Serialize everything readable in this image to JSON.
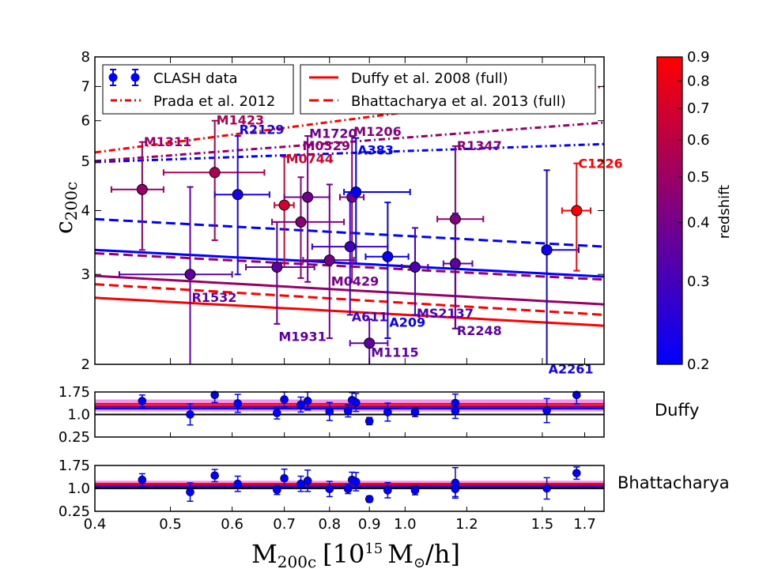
{
  "chart_data": [
    {
      "panel": "main",
      "type": "scatter",
      "x_scale": "log",
      "y_scale": "log",
      "xlim": [
        0.4,
        1.8
      ],
      "ylim": [
        2,
        8
      ],
      "ylabel": "c",
      "ylabel_sub": "200c",
      "xlabel_main": "M",
      "xlabel_sub": "200c",
      "xlabel_unit": "[10",
      "xlabel_exp": "15",
      "xlabel_unit_tail": "M",
      "xlabel_sun": "⊙",
      "xlabel_per": "/h]",
      "y_ticks": [
        2,
        3,
        4,
        5,
        6,
        7,
        8
      ],
      "x_ticks": [
        0.4,
        0.5,
        0.6,
        0.7,
        0.8,
        0.9,
        1.0,
        1.2,
        1.5,
        1.7
      ],
      "x_tick_labels": [
        "0.4",
        "0.5",
        "0.6",
        "0.7",
        "0.8",
        "0.9",
        "1.0",
        "1.2",
        "1.5",
        "1.7"
      ],
      "points": [
        {
          "name": "M1311",
          "x": 0.46,
          "y": 4.4,
          "xerr": [
            0.04,
            0.03
          ],
          "yerr": [
            1.05,
            1.05
          ],
          "z": 0.49,
          "lx": 0.46,
          "ly": 5.35
        },
        {
          "name": "R1532",
          "x": 0.53,
          "y": 3.0,
          "xerr": [
            0.1,
            0.07
          ],
          "yerr": [
            1.0,
            1.45
          ],
          "z": 0.35,
          "lx": 0.53,
          "ly": 2.65
        },
        {
          "name": "M1423",
          "x": 0.57,
          "y": 4.75,
          "xerr": [
            0.08,
            0.09
          ],
          "yerr": [
            1.25,
            1.25
          ],
          "z": 0.55,
          "lx": 0.57,
          "ly": 5.9
        },
        {
          "name": "R2129",
          "x": 0.61,
          "y": 4.3,
          "xerr": [
            0.04,
            0.06
          ],
          "yerr": [
            1.3,
            1.3
          ],
          "z": 0.23,
          "lx": 0.61,
          "ly": 5.65
        },
        {
          "name": "M0744",
          "x": 0.7,
          "y": 4.1,
          "xerr": [
            0.02,
            0.02
          ],
          "yerr": [
            1.0,
            1.0
          ],
          "z": 0.69,
          "lx": 0.7,
          "ly": 4.95
        },
        {
          "name": "M1931",
          "x": 0.685,
          "y": 3.1,
          "xerr": [
            0.06,
            0.08
          ],
          "yerr": [
            0.7,
            0.7
          ],
          "z": 0.35,
          "lx": 0.685,
          "ly": 2.22
        },
        {
          "name": "M0329",
          "x": 0.735,
          "y": 3.8,
          "xerr": [
            0.06,
            0.1
          ],
          "yerr": [
            0.85,
            0.85
          ],
          "z": 0.45,
          "lx": 0.735,
          "ly": 5.25
        },
        {
          "name": "M1720",
          "x": 0.75,
          "y": 4.25,
          "xerr": [
            0.05,
            0.05
          ],
          "yerr": [
            1.35,
            1.35
          ],
          "z": 0.39,
          "lx": 0.75,
          "ly": 5.55
        },
        {
          "name": "M0429",
          "x": 0.8,
          "y": 3.2,
          "xerr": [
            0.06,
            0.06
          ],
          "yerr": [
            0.95,
            1.3
          ],
          "z": 0.4,
          "lx": 0.8,
          "ly": 2.85
        },
        {
          "name": "M1206",
          "x": 0.855,
          "y": 4.25,
          "xerr": [
            0.03,
            0.03
          ],
          "yerr": [
            1.35,
            1.35
          ],
          "z": 0.44,
          "lx": 0.855,
          "ly": 5.6
        },
        {
          "name": "A383",
          "x": 0.865,
          "y": 4.35,
          "xerr": [
            0.03,
            0.15
          ],
          "yerr": [
            1.2,
            1.2
          ],
          "z": 0.19,
          "lx": 0.865,
          "ly": 5.15
        },
        {
          "name": "A611",
          "x": 0.85,
          "y": 3.4,
          "xerr": [
            0.09,
            0.1
          ],
          "yerr": [
            0.9,
            0.9
          ],
          "z": 0.29,
          "lx": 0.85,
          "ly": 2.43
        },
        {
          "name": "M1115",
          "x": 0.9,
          "y": 2.2,
          "xerr": [
            0.05,
            0.05
          ],
          "yerr": [
            0.25,
            0.25
          ],
          "z": 0.35,
          "lx": 0.9,
          "ly": 2.07
        },
        {
          "name": "A209",
          "x": 0.95,
          "y": 3.25,
          "xerr": [
            0.06,
            0.06
          ],
          "yerr": [
            1.0,
            0.9
          ],
          "z": 0.21,
          "lx": 0.95,
          "ly": 2.37
        },
        {
          "name": "MS2137",
          "x": 1.03,
          "y": 3.1,
          "xerr": [
            0.04,
            0.04
          ],
          "yerr": [
            0.6,
            0.6
          ],
          "z": 0.31,
          "lx": 1.03,
          "ly": 2.47
        },
        {
          "name": "R1347",
          "x": 1.16,
          "y": 3.85,
          "xerr": [
            0.06,
            0.1
          ],
          "yerr": [
            1.5,
            1.5
          ],
          "z": 0.45,
          "lx": 1.16,
          "ly": 5.25
        },
        {
          "name": "R2248",
          "x": 1.16,
          "y": 3.15,
          "xerr": [
            0.04,
            0.06
          ],
          "yerr": [
            0.8,
            0.8
          ],
          "z": 0.35,
          "lx": 1.16,
          "ly": 2.28
        },
        {
          "name": "A2261",
          "x": 1.52,
          "y": 3.35,
          "xerr": [
            0.02,
            0.15
          ],
          "yerr": [
            1.45,
            1.45
          ],
          "z": 0.22,
          "lx": 1.52,
          "ly": 1.92
        },
        {
          "name": "C1226",
          "x": 1.66,
          "y": 4.0,
          "xerr": [
            0.07,
            0.07
          ],
          "yerr": [
            0.95,
            0.95
          ],
          "z": 0.89,
          "lx": 1.66,
          "ly": 4.85
        }
      ],
      "lines": [
        {
          "name": "Duffy et al. 2008 (full)",
          "color": "#ff0000",
          "style": "solid",
          "x": [
            0.4,
            1.8
          ],
          "y": [
            2.7,
            2.38
          ]
        },
        {
          "name": "Duffy-blue",
          "color": "#0000ff",
          "style": "solid",
          "x": [
            0.4,
            1.8
          ],
          "y": [
            3.35,
            2.97
          ]
        },
        {
          "name": "Duffy-mid",
          "color": "#990066",
          "style": "solid",
          "x": [
            0.4,
            1.8
          ],
          "y": [
            2.98,
            2.62
          ]
        },
        {
          "name": "Bhattacharya et al. 2013 (full)",
          "color": "#ff0000",
          "style": "dashed",
          "x": [
            0.4,
            1.8
          ],
          "y": [
            2.87,
            2.5
          ]
        },
        {
          "name": "Bhatt-blue",
          "color": "#0000ff",
          "style": "dashed",
          "x": [
            0.4,
            1.8
          ],
          "y": [
            3.85,
            3.4
          ]
        },
        {
          "name": "Bhatt-mid",
          "color": "#990066",
          "style": "dashed",
          "x": [
            0.4,
            1.8
          ],
          "y": [
            3.3,
            2.93
          ]
        },
        {
          "name": "Prada et al. 2012",
          "color": "#ff0000",
          "style": "dashdot",
          "x": [
            0.4,
            1.8
          ],
          "y": [
            5.2,
            7.0
          ]
        },
        {
          "name": "Prada-blue",
          "color": "#0000ff",
          "style": "dashdot",
          "x": [
            0.4,
            1.8
          ],
          "y": [
            4.98,
            5.4
          ]
        },
        {
          "name": "Prada-mid",
          "color": "#990066",
          "style": "dashdot",
          "x": [
            0.4,
            1.8
          ],
          "y": [
            5.0,
            5.95
          ]
        }
      ],
      "legend": [
        {
          "label": "CLASH data",
          "kind": "errorbar",
          "color": "#0000ff"
        },
        {
          "label": "Prada et al. 2012",
          "kind": "dashdot",
          "color": "#ff0000"
        },
        {
          "label": "Duffy et al. 2008 (full)",
          "kind": "solid",
          "color": "#ff0000"
        },
        {
          "label": "Bhattacharya et al. 2013 (full)",
          "kind": "dashed",
          "color": "#ff0000"
        }
      ],
      "colorbar": {
        "label": "redshift",
        "range": [
          0.2,
          0.9
        ],
        "scale": "log",
        "ticks": [
          0.2,
          0.3,
          0.4,
          0.5,
          0.6,
          0.7,
          0.8,
          0.9
        ],
        "tick_labels": [
          "0.2",
          "0.3",
          "0.4",
          "0.5",
          "0.6",
          "0.7",
          "0.8",
          "0.9"
        ],
        "color_low": "#0000ff",
        "color_high": "#ff0000"
      }
    },
    {
      "panel": "ratio-duffy",
      "type": "scatter",
      "label": "Duffy",
      "ylim": [
        0.25,
        1.75
      ],
      "y_ticks": [
        0.25,
        1.0,
        1.75
      ],
      "y_tick_labels": [
        "0.25",
        "1.0",
        "1.75"
      ],
      "band": [
        1.1,
        1.5
      ],
      "band_color": "#ee82ee",
      "band_lines": [
        1.2,
        1.27,
        1.35
      ],
      "x": [
        0.46,
        0.53,
        0.57,
        0.61,
        0.685,
        0.7,
        0.735,
        0.75,
        0.8,
        0.845,
        0.855,
        0.865,
        0.9,
        0.95,
        1.03,
        1.16,
        1.16,
        1.52,
        1.66
      ],
      "y": [
        1.45,
        1.0,
        1.65,
        1.37,
        1.05,
        1.5,
        1.33,
        1.45,
        1.1,
        1.12,
        1.48,
        1.4,
        0.78,
        1.08,
        1.08,
        1.38,
        1.12,
        1.13,
        1.65
      ],
      "yerr": [
        0.2,
        0.35,
        0.25,
        0.3,
        0.2,
        0.25,
        0.25,
        0.3,
        0.3,
        0.2,
        0.25,
        0.3,
        0.12,
        0.3,
        0.15,
        0.3,
        0.25,
        0.4,
        0.3
      ]
    },
    {
      "panel": "ratio-bhattacharya",
      "type": "scatter",
      "label": "Bhattacharya",
      "ylim": [
        0.25,
        1.75
      ],
      "y_ticks": [
        0.25,
        1.0,
        1.75
      ],
      "y_tick_labels": [
        "0.25",
        "1.0",
        "1.75"
      ],
      "band": [
        0.97,
        1.25
      ],
      "band_color": "#ee82ee",
      "band_lines": [
        1.05,
        1.1,
        1.15
      ],
      "x": [
        0.46,
        0.53,
        0.57,
        0.61,
        0.685,
        0.7,
        0.735,
        0.75,
        0.8,
        0.845,
        0.855,
        0.865,
        0.9,
        0.95,
        1.03,
        1.16,
        1.16,
        1.52,
        1.66
      ],
      "y": [
        1.28,
        0.88,
        1.42,
        1.15,
        0.95,
        1.33,
        1.15,
        1.25,
        0.98,
        0.98,
        1.28,
        1.22,
        0.65,
        0.94,
        0.94,
        1.18,
        0.98,
        1.0,
        1.5
      ],
      "yerr": [
        0.2,
        0.3,
        0.2,
        0.25,
        0.15,
        0.3,
        0.25,
        0.35,
        0.25,
        0.15,
        0.25,
        0.3,
        0.1,
        0.25,
        0.15,
        0.5,
        0.25,
        0.35,
        0.2
      ]
    }
  ],
  "side_labels": {
    "duffy": "Duffy",
    "bhattacharya": "Bhattacharya"
  }
}
